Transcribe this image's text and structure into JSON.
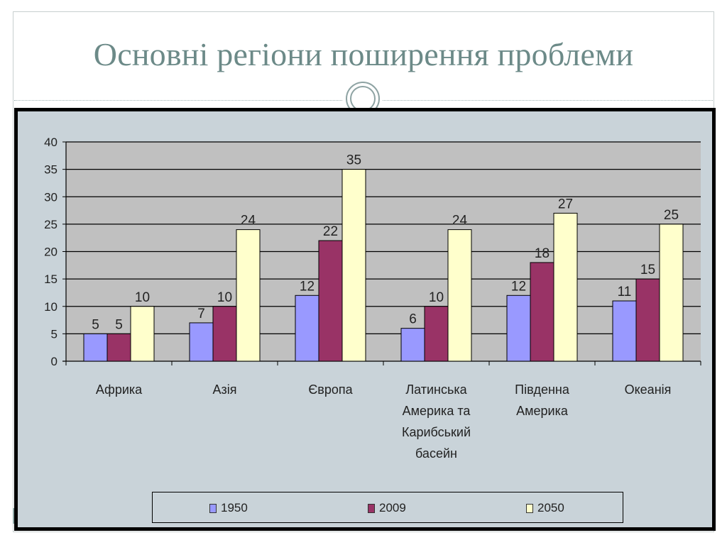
{
  "slide": {
    "title": "Основні регіони поширення проблеми"
  },
  "colors": {
    "title": "#6c8a88",
    "panel_background": "#c9d3d9",
    "plot_background": "#c0c0c0",
    "series_1950": "#9999ff",
    "series_2009": "#993366",
    "series_2050": "#ffffcc"
  },
  "chart_data": {
    "type": "bar",
    "title": "",
    "xlabel": "",
    "ylabel": "",
    "ylim": [
      0,
      40
    ],
    "yticks": [
      0,
      5,
      10,
      15,
      20,
      25,
      30,
      35,
      40
    ],
    "grid": true,
    "legend_position": "bottom",
    "categories": [
      "Африка",
      "Азія",
      "Європа",
      "Латинська Америка та Карибський басейн",
      "Південна Америка",
      "Океанія"
    ],
    "category_lines": [
      [
        "Африка"
      ],
      [
        "Азія"
      ],
      [
        "Європа"
      ],
      [
        "Латинська",
        "Америка та",
        "Карибський",
        "басейн"
      ],
      [
        "Південна",
        "Америка"
      ],
      [
        "Океанія"
      ]
    ],
    "series": [
      {
        "name": "1950",
        "color": "#9999ff",
        "values": [
          5,
          7,
          12,
          6,
          12,
          11
        ]
      },
      {
        "name": "2009",
        "color": "#993366",
        "values": [
          5,
          10,
          22,
          10,
          18,
          15
        ]
      },
      {
        "name": "2050",
        "color": "#ffffcc",
        "values": [
          10,
          24,
          35,
          24,
          27,
          25
        ]
      }
    ]
  }
}
